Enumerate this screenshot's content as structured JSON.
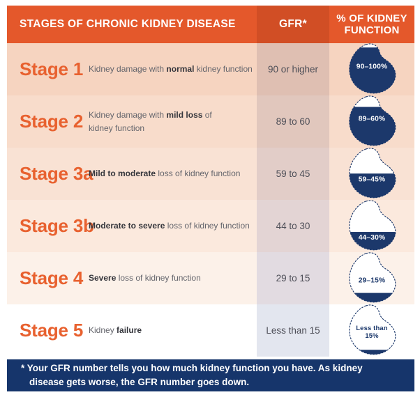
{
  "colors": {
    "header_bg": "#e4582b",
    "gfr_header_bg": "#d14e25",
    "stage_text": "#e8612f",
    "navy": "#1c386b",
    "footer_bg": "#16356b"
  },
  "header": {
    "title": "STAGES OF CHRONIC KIDNEY DISEASE",
    "gfr_label": "GFR*",
    "function_label": "% OF KIDNEY FUNCTION"
  },
  "rows": [
    {
      "stage": "Stage 1",
      "desc": {
        "pre": "Kidney damage with ",
        "bold": "normal",
        "post": " kidney function"
      },
      "gfr": "90 or higher",
      "bg": "#f6d4c0",
      "gfr_bg": "#dfbfb2",
      "kidney": {
        "fill_pct": 92,
        "label_style": "light",
        "labels": [
          {
            "text": "90–100%",
            "y": 48,
            "size": 12.5
          }
        ]
      }
    },
    {
      "stage": "Stage 2",
      "desc": {
        "pre": "Kidney damage with ",
        "bold": "mild loss",
        "post": " of\nkidney function"
      },
      "gfr": "89 to 60",
      "bg": "#f8dccb",
      "gfr_bg": "#e1c7bd",
      "kidney": {
        "fill_pct": 78,
        "label_style": "light",
        "labels": [
          {
            "text": "89–60%",
            "y": 48,
            "size": 12.5
          }
        ]
      }
    },
    {
      "stage": "Stage 3a",
      "desc": {
        "pre": "",
        "bold": "Mild to moderate",
        "post": " loss of kidney function"
      },
      "gfr": "59 to 45",
      "bg": "#f9e2d4",
      "gfr_bg": "#e2cdc8",
      "kidney": {
        "fill_pct": 50,
        "label_style": "light",
        "labels": [
          {
            "text": "59–45%",
            "y": 63,
            "size": 12.5
          }
        ]
      }
    },
    {
      "stage": "Stage 3b",
      "desc": {
        "pre": "",
        "bold": "Moderate to severe",
        "post": " loss of kidney function"
      },
      "gfr": "44 to 30",
      "bg": "#fbe9dd",
      "gfr_bg": "#e3d4d4",
      "kidney": {
        "fill_pct": 38,
        "label_style": "light",
        "labels": [
          {
            "text": "44–30%",
            "y": 73,
            "size": 12.5
          }
        ]
      }
    },
    {
      "stage": "Stage 4",
      "desc": {
        "pre": "",
        "bold": "Severe",
        "post": " loss of kidney function"
      },
      "gfr": "29 to 15",
      "bg": "#fcf1e9",
      "gfr_bg": "#e2dbe1",
      "kidney": {
        "fill_pct": 21,
        "label_style": "dark",
        "labels": [
          {
            "text": "29–15%",
            "y": 57,
            "size": 12.5
          }
        ]
      }
    },
    {
      "stage": "Stage 5",
      "desc": {
        "pre": "Kidney ",
        "bold": "failure",
        "post": ""
      },
      "gfr": "Less than 15",
      "bg": "#ffffff",
      "gfr_bg": "#e3e6ef",
      "kidney": {
        "fill_pct": 12,
        "label_style": "dark",
        "labels": [
          {
            "text": "Less than",
            "y": 49,
            "size": 11.5
          },
          {
            "text": "15%",
            "y": 62,
            "size": 11.5
          }
        ]
      }
    }
  ],
  "footnote": "* Your GFR number tells you how much kidney function you have. As kidney disease gets worse, the GFR number goes down."
}
